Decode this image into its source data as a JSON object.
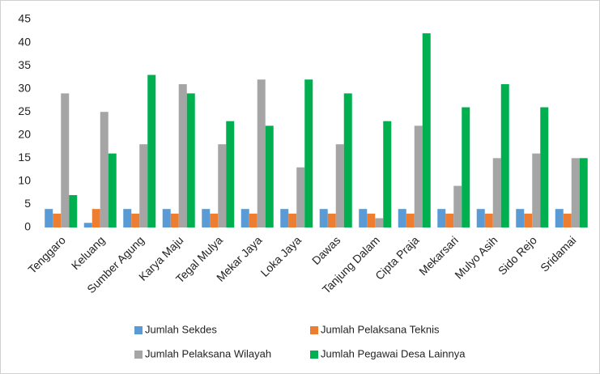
{
  "chart_data": {
    "type": "bar",
    "categories": [
      "Tenggaro",
      "Keluang",
      "Sumber Agung",
      "Karya Maju",
      "Tegal Mulya",
      "Mekar Jaya",
      "Loka Jaya",
      "Dawas",
      "Tanjung Dalam",
      "Cipta Praja",
      "Mekarsari",
      "Mulyo Asih",
      "Sido Rejo",
      "Sridamai"
    ],
    "series": [
      {
        "name": "Jumlah Sekdes",
        "color": "#5b9bd5",
        "values": [
          4,
          1,
          4,
          4,
          4,
          4,
          4,
          4,
          4,
          4,
          4,
          4,
          4,
          4
        ]
      },
      {
        "name": "Jumlah Pelaksana Teknis",
        "color": "#ed7d31",
        "values": [
          3,
          4,
          3,
          3,
          3,
          3,
          3,
          3,
          3,
          3,
          3,
          3,
          3,
          3
        ]
      },
      {
        "name": "Jumlah Pelaksana Wilayah",
        "color": "#a5a5a5",
        "values": [
          29,
          25,
          18,
          31,
          18,
          32,
          13,
          18,
          2,
          22,
          9,
          15,
          16,
          15
        ]
      },
      {
        "name": "Jumlah Pegawai Desa Lainnya",
        "color": "#00b050",
        "values": [
          7,
          16,
          33,
          29,
          23,
          22,
          32,
          29,
          23,
          42,
          26,
          31,
          26,
          15
        ]
      }
    ],
    "ylim": [
      0,
      45
    ],
    "yticks": [
      0,
      5,
      10,
      15,
      20,
      25,
      30,
      35,
      40,
      45
    ],
    "grid": false,
    "legend": "bottom"
  }
}
